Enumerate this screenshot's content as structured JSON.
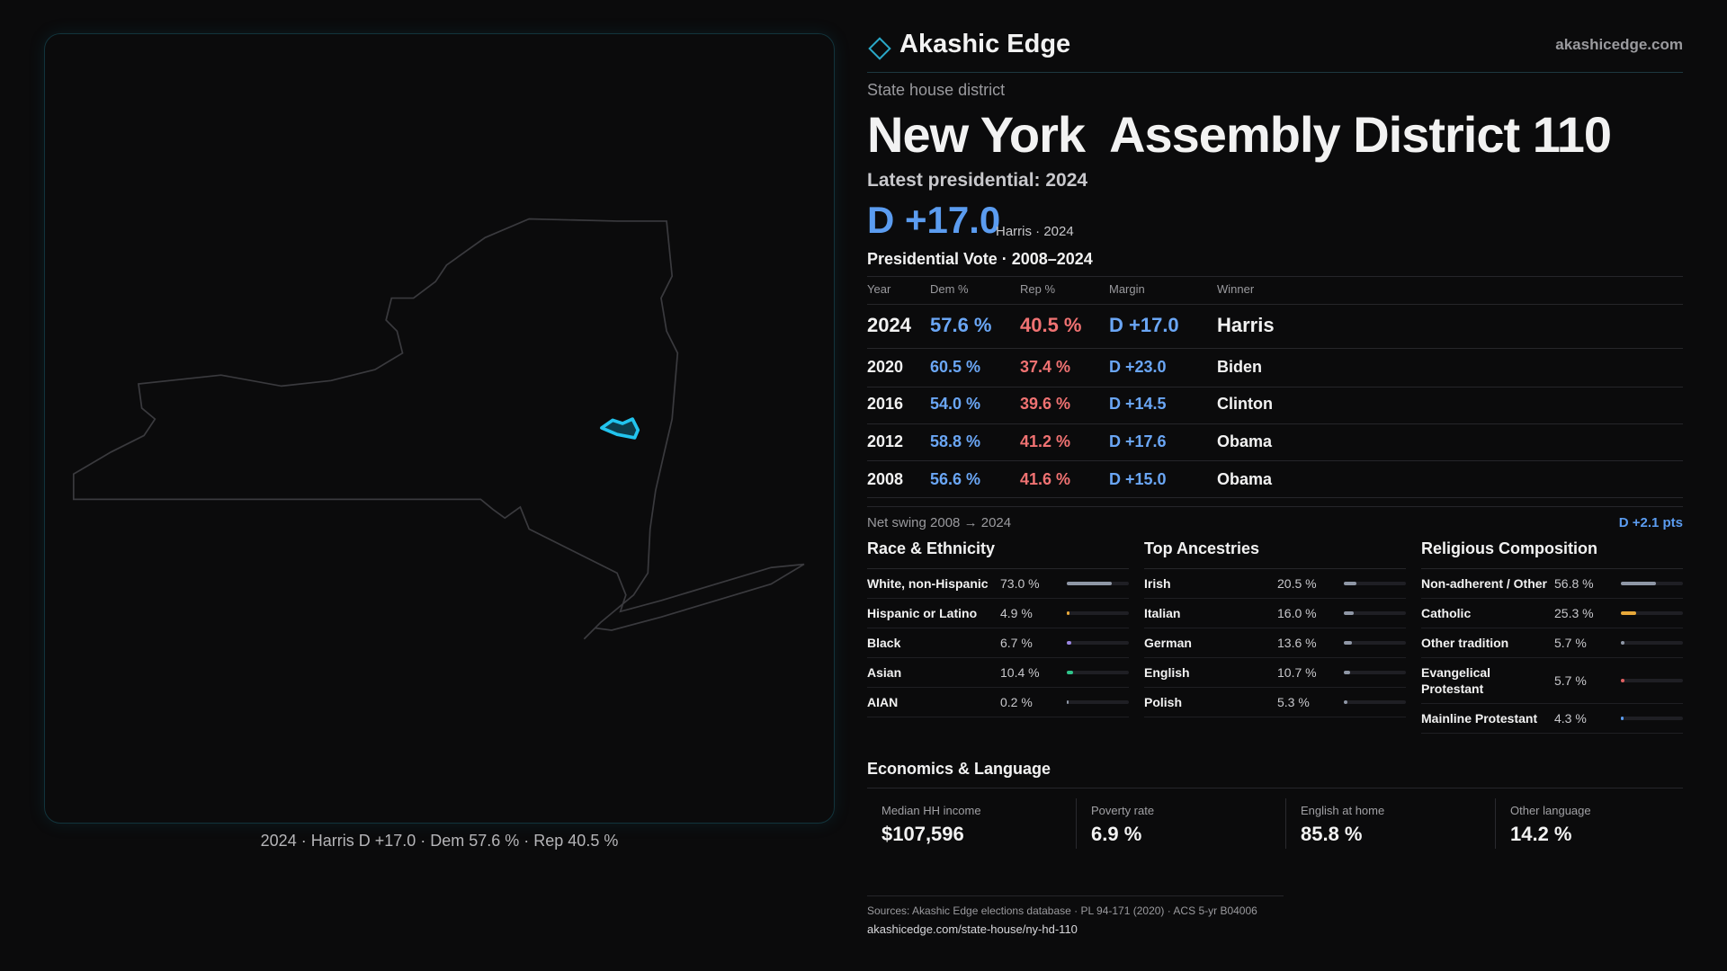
{
  "header": {
    "brand": "Akashic Edge",
    "site": "akashicedge.com"
  },
  "district": {
    "kind": "State house district",
    "state": "New York",
    "name": "Assembly District 110",
    "latest": "Latest presidential: 2024",
    "margin": "D +17.0",
    "margin_note": "Harris · 2024"
  },
  "map": {
    "caption": "2024 · Harris D +17.0 · Dem 57.6 % · Rep 40.5 %"
  },
  "table": {
    "title": "Presidential Vote · 2008–2024",
    "columns": [
      "Year",
      "Dem %",
      "Rep %",
      "Margin",
      "Winner"
    ],
    "rows": [
      [
        "2024",
        "57.6 %",
        "40.5 %",
        "D +17.0",
        "Harris"
      ],
      [
        "2020",
        "60.5 %",
        "37.4 %",
        "D +23.0",
        "Biden"
      ],
      [
        "2016",
        "54.0 %",
        "39.6 %",
        "D +14.5",
        "Clinton"
      ],
      [
        "2012",
        "58.8 %",
        "41.2 %",
        "D +17.6",
        "Obama"
      ],
      [
        "2008",
        "56.6 %",
        "41.6 %",
        "D +15.0",
        "Obama"
      ]
    ]
  },
  "swing": {
    "label": "Net swing 2008 → 2024",
    "value": "D +2.1 pts"
  },
  "groups": [
    {
      "title": "Race & Ethnicity",
      "items": [
        {
          "name": "White, non-Hispanic",
          "value": 73.0,
          "label": "73.0 %",
          "color": "#8f97a6"
        },
        {
          "name": "Hispanic or Latino",
          "value": 4.9,
          "label": "4.9 %",
          "color": "#e8a93a"
        },
        {
          "name": "Black",
          "value": 6.7,
          "label": "6.7 %",
          "color": "#9a86e0"
        },
        {
          "name": "Asian",
          "value": 10.4,
          "label": "10.4 %",
          "color": "#2fc48a"
        },
        {
          "name": "AIAN",
          "value": 0.2,
          "label": "0.2 %",
          "color": "#8f97a6"
        }
      ]
    },
    {
      "title": "Top Ancestries",
      "items": [
        {
          "name": "Irish",
          "value": 20.5,
          "label": "20.5 %",
          "color": "#8f97a6"
        },
        {
          "name": "Italian",
          "value": 16.0,
          "label": "16.0 %",
          "color": "#8f97a6"
        },
        {
          "name": "German",
          "value": 13.6,
          "label": "13.6 %",
          "color": "#8f97a6"
        },
        {
          "name": "English",
          "value": 10.7,
          "label": "10.7 %",
          "color": "#8f97a6"
        },
        {
          "name": "Polish",
          "value": 5.3,
          "label": "5.3 %",
          "color": "#8f97a6"
        }
      ]
    },
    {
      "title": "Religious Composition",
      "items": [
        {
          "name": "Non-adherent / Other",
          "value": 56.8,
          "label": "56.8 %",
          "color": "#8f97a6"
        },
        {
          "name": "Catholic",
          "value": 25.3,
          "label": "25.3 %",
          "color": "#e8a93a"
        },
        {
          "name": "Other tradition",
          "value": 5.7,
          "label": "5.7 %",
          "color": "#8f97a6"
        },
        {
          "name": "Evangelical Protestant",
          "value": 5.7,
          "label": "5.7 %",
          "color": "#e06060"
        },
        {
          "name": "Mainline Protestant",
          "value": 4.3,
          "label": "4.3 %",
          "color": "#5b9cf0"
        }
      ]
    }
  ],
  "economics": {
    "title": "Economics & Language",
    "items": [
      {
        "label": "Median HH income",
        "value": "$107,596"
      },
      {
        "label": "Poverty rate",
        "value": "6.9 %"
      },
      {
        "label": "English at home",
        "value": "85.8 %"
      },
      {
        "label": "Other language",
        "value": "14.2 %"
      }
    ]
  },
  "footer": {
    "sources": "Sources: Akashic Edge elections database · PL 94-171 (2020) · ACS 5-yr B04006",
    "url": "akashicedge.com/state-house/ny-hd-110"
  }
}
